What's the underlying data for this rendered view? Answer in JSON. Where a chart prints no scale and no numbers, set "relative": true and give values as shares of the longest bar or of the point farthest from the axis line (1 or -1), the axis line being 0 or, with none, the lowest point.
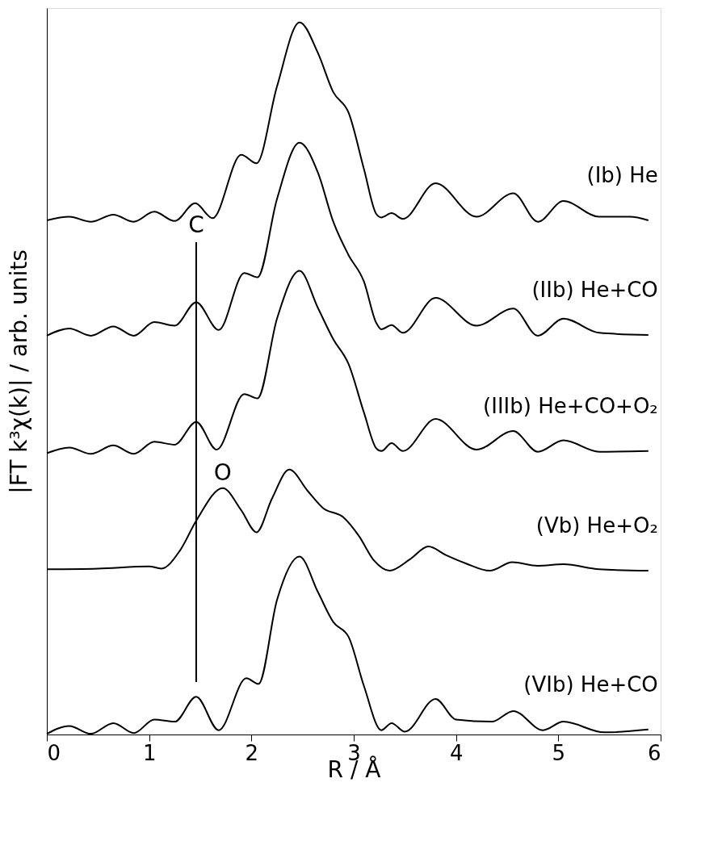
{
  "chart_data": {
    "type": "line",
    "relative": true,
    "xlabel": "R / Å",
    "ylabel": "|FT k³χ(k)| / arb. units",
    "xlim": [
      0,
      6
    ],
    "xticks": [
      0,
      1,
      2,
      3,
      4,
      5,
      6
    ],
    "marker": "none",
    "line_style": "solid",
    "series": [
      {
        "name": "(Ib) He",
        "color": "#000000",
        "x": [
          0,
          0.22,
          0.43,
          0.65,
          0.85,
          1.05,
          1.25,
          1.45,
          1.62,
          1.9,
          2.05,
          2.25,
          2.47,
          2.65,
          2.8,
          2.95,
          3.1,
          3.22,
          3.27,
          3.37,
          3.48,
          3.8,
          4.2,
          4.56,
          4.8,
          5.05,
          5.4,
          5.7,
          5.88
        ],
        "values": [
          0.722,
          0.727,
          0.72,
          0.73,
          0.72,
          0.734,
          0.721,
          0.746,
          0.725,
          0.814,
          0.802,
          0.91,
          1.0,
          0.957,
          0.902,
          0.873,
          0.794,
          0.731,
          0.726,
          0.732,
          0.724,
          0.774,
          0.727,
          0.76,
          0.72,
          0.749,
          0.727,
          0.727,
          0.722
        ]
      },
      {
        "name": "(IIb) He+CO",
        "color": "#000000",
        "x": [
          0,
          0.22,
          0.43,
          0.65,
          0.85,
          1.05,
          1.25,
          1.46,
          1.68,
          1.93,
          2.06,
          2.25,
          2.47,
          2.65,
          2.8,
          2.95,
          3.1,
          3.22,
          3.27,
          3.37,
          3.48,
          3.8,
          4.2,
          4.56,
          4.8,
          5.05,
          5.4,
          5.88
        ],
        "values": [
          0.56,
          0.57,
          0.56,
          0.573,
          0.56,
          0.579,
          0.574,
          0.607,
          0.568,
          0.648,
          0.642,
          0.752,
          0.831,
          0.789,
          0.72,
          0.673,
          0.636,
          0.578,
          0.569,
          0.575,
          0.564,
          0.613,
          0.574,
          0.598,
          0.56,
          0.584,
          0.564,
          0.561
        ]
      },
      {
        "name": "(IIIb) He+CO+O₂",
        "color": "#000000",
        "x": [
          0,
          0.22,
          0.43,
          0.65,
          0.85,
          1.05,
          1.25,
          1.46,
          1.66,
          1.93,
          2.06,
          2.25,
          2.47,
          2.65,
          2.8,
          2.95,
          3.1,
          3.22,
          3.27,
          3.37,
          3.48,
          3.8,
          4.2,
          4.56,
          4.8,
          5.05,
          5.4,
          5.88
        ],
        "values": [
          0.395,
          0.403,
          0.394,
          0.406,
          0.394,
          0.411,
          0.407,
          0.439,
          0.4,
          0.478,
          0.472,
          0.584,
          0.651,
          0.599,
          0.555,
          0.52,
          0.452,
          0.402,
          0.398,
          0.409,
          0.398,
          0.443,
          0.4,
          0.426,
          0.397,
          0.413,
          0.397,
          0.398
        ]
      },
      {
        "name": "(Vb) He+O₂",
        "color": "#000000",
        "x": [
          0,
          0.5,
          1.0,
          1.12,
          1.3,
          1.46,
          1.72,
          1.9,
          2.05,
          2.2,
          2.37,
          2.55,
          2.7,
          2.9,
          3.05,
          3.2,
          3.35,
          3.55,
          3.73,
          3.9,
          4.1,
          4.33,
          4.55,
          4.8,
          5.05,
          5.4,
          5.88
        ],
        "values": [
          0.232,
          0.233,
          0.236,
          0.233,
          0.258,
          0.3,
          0.346,
          0.315,
          0.284,
          0.331,
          0.372,
          0.342,
          0.318,
          0.305,
          0.279,
          0.244,
          0.23,
          0.246,
          0.264,
          0.252,
          0.24,
          0.23,
          0.242,
          0.237,
          0.239,
          0.232,
          0.23
        ]
      },
      {
        "name": "(VIb) He+CO",
        "color": "#000000",
        "x": [
          0,
          0.22,
          0.43,
          0.65,
          0.85,
          1.05,
          1.25,
          1.46,
          1.68,
          1.95,
          2.07,
          2.25,
          2.47,
          2.65,
          2.8,
          2.95,
          3.1,
          3.27,
          3.37,
          3.5,
          3.8,
          4.0,
          4.35,
          4.56,
          4.85,
          5.05,
          5.45,
          5.88
        ],
        "values": [
          0.001,
          0.012,
          0.001,
          0.016,
          0.002,
          0.021,
          0.018,
          0.053,
          0.006,
          0.079,
          0.071,
          0.189,
          0.25,
          0.2,
          0.158,
          0.137,
          0.068,
          0.006,
          0.016,
          0.004,
          0.05,
          0.021,
          0.018,
          0.033,
          0.006,
          0.018,
          0.003,
          0.007
        ]
      }
    ],
    "ref_lines": [
      {
        "axis": "x",
        "value": 1.46,
        "label": "C"
      }
    ],
    "annotations": [
      {
        "text": "O",
        "x": 1.72,
        "y": 0.346
      }
    ]
  }
}
